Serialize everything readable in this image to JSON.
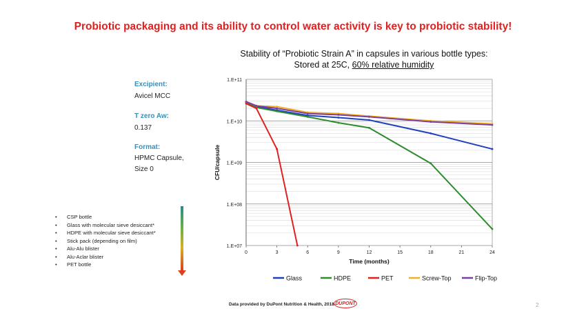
{
  "slide": {
    "title": "Probiotic packaging and its ability to control water activity is key to probiotic stability!",
    "chart_title_line1": "Stability of “Probiotic Strain A” in capsules in various bottle types:",
    "chart_title_line2_plain": "Stored at 25C, ",
    "chart_title_line2_underlined": "60% relative humidity",
    "info": {
      "excipient_label": "Excipient:",
      "excipient_value": "Avicel MCC",
      "aw_label": "T zero Aw:",
      "aw_value": "0.137",
      "format_label": "Format:",
      "format_value_1": "HPMC Capsule,",
      "format_value_2": "Size 0"
    },
    "bullets": [
      "CSP bottle",
      "Glass with molecular sieve desiccant*",
      "HDPE with molecular sieve desiccant*",
      "Stick pack (depending on film)",
      "Alu-Alu blister",
      "Alu-Aclar blister",
      "PET bottle"
    ],
    "gradient_arrow_colors": [
      "#2a8a8a",
      "#70b040",
      "#d8b020",
      "#d84020"
    ],
    "footer": "Data provided by DuPont Nutrition & Health, 2018.",
    "logo_text": "DUPONT",
    "page_number": "2"
  },
  "chart_data": {
    "type": "line",
    "xlabel": "Time (months)",
    "ylabel": "CFU/capsule",
    "x_ticks": [
      0,
      3,
      6,
      9,
      12,
      15,
      18,
      21,
      24
    ],
    "xlim": [
      0,
      24
    ],
    "y_scale": "log",
    "ylim": [
      10000000,
      100000000000
    ],
    "y_ticks": [
      10000000,
      100000000,
      1000000000,
      10000000000,
      100000000000
    ],
    "y_tick_labels": [
      "1.E+07",
      "1.E+08",
      "1.E+09",
      "1.E+10",
      "1.E+11"
    ],
    "grid": true,
    "legend_position": "bottom",
    "series": [
      {
        "name": "Glass",
        "color": "#1f3fbf",
        "x": [
          0,
          1,
          3,
          6,
          9,
          12,
          18,
          24
        ],
        "values": [
          28000000000,
          22000000000,
          18000000000,
          13500000000,
          12000000000,
          10500000000,
          5000000000,
          2100000000
        ]
      },
      {
        "name": "HDPE",
        "color": "#2e8b2e",
        "x": [
          0,
          1,
          3,
          6,
          9,
          12,
          18,
          24
        ],
        "values": [
          28000000000,
          21000000000,
          17000000000,
          12500000000,
          9000000000,
          6800000000,
          950000000,
          25000000
        ]
      },
      {
        "name": "PET",
        "color": "#e02020",
        "x": [
          0,
          1,
          3,
          5
        ],
        "values": [
          26000000000,
          20000000000,
          2100000000,
          10000000
        ]
      },
      {
        "name": "Screw-Top",
        "color": "#f0b020",
        "x": [
          0,
          1,
          3,
          6,
          9,
          12,
          18,
          24
        ],
        "values": [
          29000000000,
          23000000000,
          22000000000,
          16000000000,
          15000000000,
          13000000000,
          10000000000,
          8500000000
        ]
      },
      {
        "name": "Flip-Top",
        "color": "#7a3fa0",
        "x": [
          0,
          1,
          3,
          6,
          9,
          12,
          18,
          24
        ],
        "values": [
          29000000000,
          23000000000,
          20000000000,
          15000000000,
          14000000000,
          12500000000,
          9500000000,
          8000000000
        ]
      }
    ]
  }
}
